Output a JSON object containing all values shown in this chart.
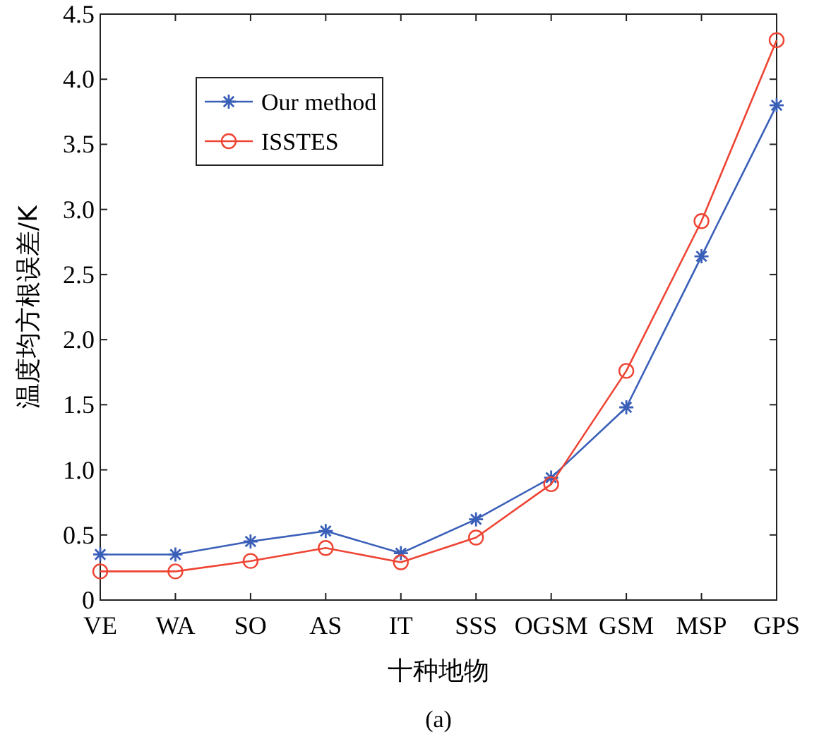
{
  "chart_data": {
    "type": "line",
    "xlabel": "十种地物",
    "ylabel": "温度均方根误差/K",
    "categories": [
      "VE",
      "WA",
      "SO",
      "AS",
      "IT",
      "SSS",
      "OGSM",
      "GSM",
      "MSP",
      "GPS"
    ],
    "series": [
      {
        "name": "Our method",
        "color": "#3a5fb8",
        "marker": "cross",
        "values": [
          0.35,
          0.35,
          0.45,
          0.53,
          0.36,
          0.62,
          0.94,
          1.48,
          2.64,
          3.8
        ]
      },
      {
        "name": "ISSTES",
        "color": "#ee4433",
        "marker": "circle",
        "values": [
          0.22,
          0.22,
          0.3,
          0.4,
          0.29,
          0.48,
          0.89,
          1.76,
          2.91,
          4.3
        ]
      }
    ],
    "ylim": [
      0,
      4.5
    ],
    "yticks": [
      0,
      0.5,
      {
        "value": 1,
        "label": "1.0"
      },
      {
        "value": 1.5,
        "label": "1.5"
      },
      {
        "value": 2,
        "label": "2.0"
      },
      {
        "value": 2.5,
        "label": "2.5"
      },
      {
        "value": 3,
        "label": "3.0"
      },
      {
        "value": 3.5,
        "label": "3.5"
      },
      {
        "value": 4,
        "label": "4.0"
      },
      {
        "value": 4.5,
        "label": "4.5"
      }
    ],
    "grid": false,
    "legend": "top left",
    "line_style": "solid",
    "annotations": [
      "(a)"
    ]
  }
}
